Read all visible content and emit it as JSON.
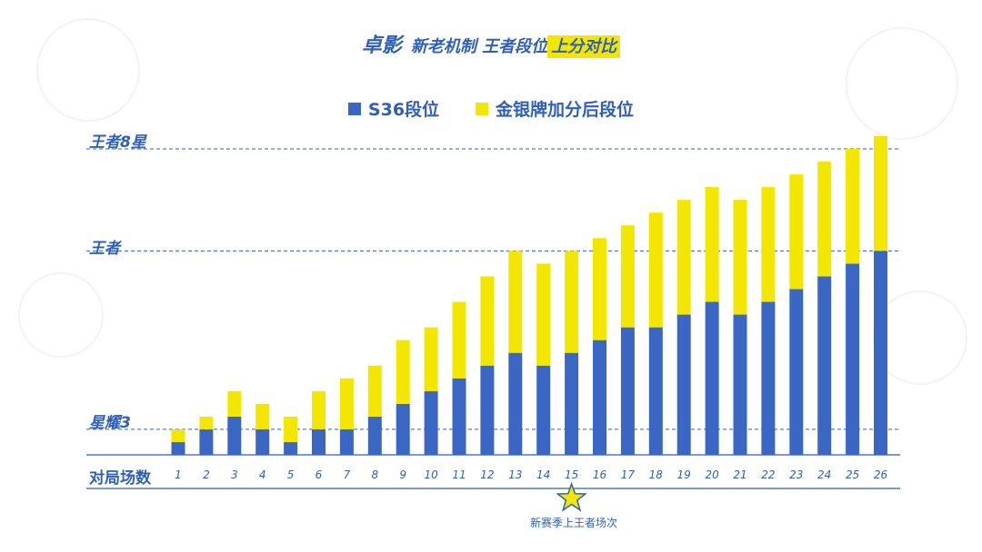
{
  "header": {
    "brand": "卓影",
    "subtitle_main": "新老机制 王者段位",
    "subtitle_highlight": "上分对比"
  },
  "legend": [
    {
      "label": "S36段位",
      "color": "#3a66c4"
    },
    {
      "label": "金银牌加分后段位",
      "color": "#f3e600"
    }
  ],
  "levels": {
    "top": "王者8星",
    "mid": "王者",
    "low": "星耀3"
  },
  "x_title": "对局场数",
  "star_caption": "新赛季上王者场次",
  "chart_data": {
    "type": "bar",
    "stacked": true,
    "categories": [
      "1",
      "2",
      "3",
      "4",
      "5",
      "6",
      "7",
      "8",
      "9",
      "10",
      "11",
      "12",
      "13",
      "14",
      "15",
      "16",
      "17",
      "18",
      "19",
      "20",
      "21",
      "22",
      "23",
      "24",
      "25",
      "26"
    ],
    "series": [
      {
        "name": "S36段位",
        "values": [
          1,
          2,
          3,
          2,
          1,
          2,
          2,
          3,
          4,
          5,
          6,
          7,
          8,
          7,
          8,
          9,
          10,
          10,
          11,
          12,
          11,
          12,
          13,
          14,
          15,
          16
        ]
      },
      {
        "name": "金银牌加分后段位",
        "values": [
          1,
          1,
          2,
          2,
          2,
          3,
          4,
          4,
          5,
          5,
          6,
          7,
          8,
          8,
          8,
          8,
          8,
          9,
          9,
          9,
          9,
          9,
          9,
          9,
          9,
          9
        ]
      }
    ],
    "ylim": [
      0,
      24
    ],
    "reference_lines": [
      {
        "label": "星耀3",
        "value": 2
      },
      {
        "label": "王者",
        "value": 16
      },
      {
        "label": "王者8星",
        "value": 24
      }
    ],
    "highlight_category": "15",
    "grid": false
  }
}
